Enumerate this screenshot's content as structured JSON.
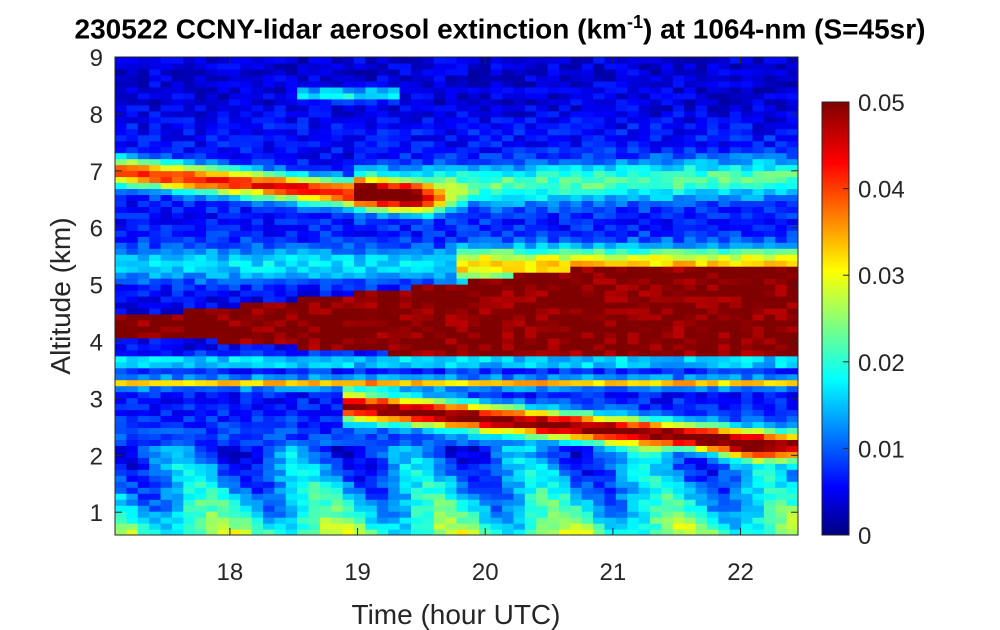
{
  "chart_data": {
    "type": "heatmap",
    "title": {
      "prefix": "230522 CCNY-lidar aerosol extinction (km",
      "superscript": "-1",
      "suffix": ") at 1064-nm (S=45sr)"
    },
    "xlabel": "Time (hour UTC)",
    "ylabel": "Altitude (km)",
    "xlim": [
      17.1,
      22.45
    ],
    "ylim": [
      0.6,
      9
    ],
    "xticks": [
      "18",
      "19",
      "20",
      "21",
      "22"
    ],
    "yticks": [
      "1",
      "2",
      "3",
      "4",
      "5",
      "6",
      "7",
      "8",
      "9"
    ],
    "colorbar": {
      "range": [
        0,
        0.05
      ],
      "ticks": [
        "0",
        "0.01",
        "0.02",
        "0.03",
        "0.04",
        "0.05"
      ],
      "colormap": "jet"
    },
    "features": [
      {
        "name": "dense aerosol layer",
        "time_range": [
          17.1,
          22.45
        ],
        "altitude_top": [
          4.4,
          5.3
        ],
        "altitude_bottom": [
          4.1,
          3.7
        ],
        "extinction": 0.05
      },
      {
        "name": "upper aerosol layer",
        "time_range": [
          17.1,
          19.4
        ],
        "altitude_center": [
          7.0,
          6.6
        ],
        "extinction": 0.045
      },
      {
        "name": "lower aerosol layer",
        "time_range": [
          18.9,
          22.45
        ],
        "altitude_center": [
          2.85,
          2.1
        ],
        "extinction": 0.04
      },
      {
        "name": "boundary layer",
        "time_range": [
          17.1,
          22.45
        ],
        "altitude_range": [
          0.6,
          2.0
        ],
        "extinction": 0.02
      }
    ]
  }
}
